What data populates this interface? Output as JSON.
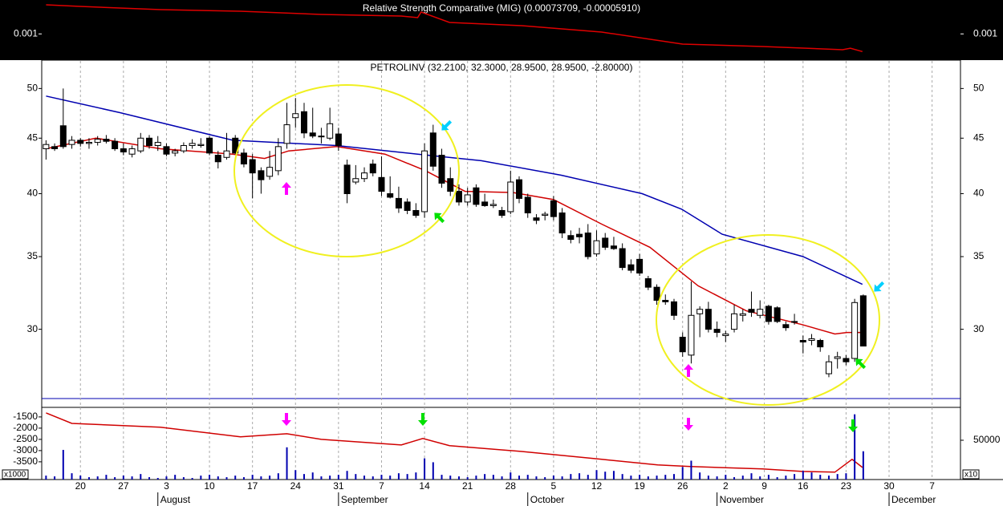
{
  "chart_data": [
    {
      "type": "line",
      "title": "Relative Strength Comparative (MIG) (0.00073709, -0.00005910)",
      "color": "#e00000",
      "x": [
        0,
        4,
        13.3,
        22.6,
        32,
        41.3,
        43.2,
        43.6,
        46.9,
        55.3,
        64.6,
        74,
        83.3,
        92.6,
        93.5,
        94.9
      ],
      "values": [
        0.001432,
        0.001409,
        0.001361,
        0.001337,
        0.001289,
        0.001265,
        0.001242,
        0.001325,
        0.00117,
        0.001122,
        0.001027,
        0.000848,
        0.000813,
        0.000765,
        0.000788,
        0.000737
      ],
      "ylim": [
        0.00061,
        0.00148
      ],
      "yticks": [
        0.001
      ]
    },
    {
      "type": "candlestick",
      "title": "PETROLINV (32.2100, 32.3000, 28.9500, 28.9500, -2.80000)",
      "log_scale": true,
      "ylim": [
        25.9,
        53.1
      ],
      "yticks": [
        30,
        35,
        40,
        45,
        50
      ],
      "open": [
        44.0,
        44.2,
        46.2,
        44.4,
        44.8,
        44.5,
        44.6,
        44.9,
        44.7,
        44.0,
        43.5,
        43.8,
        45.0,
        44.3,
        44.2,
        43.6,
        43.8,
        44.3,
        44.3,
        45.0,
        43.4,
        43.2,
        45.0,
        43.6,
        43.0,
        42.0,
        41.5,
        42.0,
        44.5,
        47.0,
        47.6,
        45.5,
        45.2,
        45.0,
        45.4,
        42.5,
        41.0,
        41.3,
        42.6,
        41.4,
        40.0,
        39.6,
        39.3,
        38.6,
        38.5,
        45.5,
        43.4,
        41.3,
        40.2,
        39.3,
        40.5,
        39.3,
        39.0,
        38.6,
        38.5,
        41.2,
        39.7,
        38.0,
        38.2,
        39.4,
        38.4,
        36.6,
        36.7,
        36.8,
        35.2,
        36.4,
        35.8,
        35.6,
        34.4,
        34.8,
        33.4,
        32.8,
        31.9,
        31.8,
        29.5,
        28.4,
        31.0,
        31.3,
        30.0,
        29.6,
        30.0,
        30.9,
        31.3,
        30.9,
        31.5,
        31.4,
        30.3,
        30.5,
        29.3,
        29.3,
        29.3,
        27.3,
        28.2,
        28.2,
        28.2,
        32.21
      ],
      "high": [
        44.8,
        44.5,
        50.0,
        45.2,
        45.0,
        45.0,
        45.2,
        45.3,
        45.0,
        44.5,
        44.3,
        45.5,
        45.3,
        45.2,
        44.5,
        44.0,
        44.6,
        44.9,
        45.0,
        45.2,
        43.8,
        45.5,
        45.3,
        44.0,
        43.5,
        42.3,
        43.8,
        45.0,
        48.5,
        49.0,
        48.5,
        48.0,
        46.0,
        48.0,
        46.0,
        43.0,
        42.5,
        42.3,
        43.0,
        43.3,
        41.5,
        40.6,
        39.6,
        39.2,
        44.5,
        46.3,
        44.0,
        42.3,
        40.8,
        40.5,
        40.8,
        40.0,
        39.5,
        38.9,
        42.0,
        41.5,
        40.0,
        38.3,
        38.5,
        39.8,
        38.8,
        37.0,
        37.2,
        37.5,
        37.0,
        36.8,
        36.5,
        36.0,
        34.8,
        35.2,
        33.6,
        33.0,
        32.3,
        32.0,
        29.8,
        33.2,
        31.5,
        31.8,
        30.5,
        29.9,
        31.6,
        31.3,
        32.5,
        31.9,
        31.6,
        31.5,
        30.5,
        31.0,
        29.6,
        29.7,
        29.4,
        28.4,
        28.6,
        28.4,
        32.0,
        32.3
      ],
      "low": [
        43.0,
        43.8,
        44.0,
        44.0,
        44.2,
        44.0,
        44.3,
        44.5,
        43.8,
        43.4,
        43.2,
        43.6,
        44.0,
        43.8,
        43.3,
        43.3,
        43.6,
        44.0,
        44.1,
        43.4,
        42.2,
        43.0,
        43.5,
        42.3,
        39.6,
        40.0,
        41.2,
        41.6,
        44.0,
        46.0,
        45.0,
        45.0,
        44.5,
        44.8,
        43.8,
        39.2,
        40.8,
        41.0,
        41.5,
        39.8,
        39.6,
        38.4,
        38.3,
        38.0,
        38.0,
        42.0,
        40.5,
        39.8,
        39.0,
        39.0,
        38.9,
        38.9,
        38.8,
        38.0,
        38.3,
        39.2,
        38.0,
        37.5,
        37.8,
        37.8,
        36.4,
        36.0,
        36.0,
        34.8,
        35.0,
        35.5,
        35.5,
        34.0,
        33.8,
        33.6,
        32.6,
        31.6,
        31.6,
        30.6,
        28.3,
        27.9,
        29.5,
        29.8,
        29.5,
        29.2,
        29.8,
        30.5,
        30.8,
        30.7,
        30.3,
        30.4,
        29.9,
        30.3,
        28.5,
        29.0,
        28.6,
        27.1,
        27.6,
        27.8,
        28.0,
        28.95
      ],
      "close": [
        44.4,
        44.0,
        44.2,
        44.8,
        44.5,
        44.6,
        44.9,
        44.7,
        44.0,
        43.7,
        44.0,
        45.0,
        44.3,
        44.6,
        43.5,
        43.8,
        44.3,
        44.5,
        44.4,
        43.6,
        42.8,
        43.8,
        43.6,
        42.6,
        41.8,
        41.2,
        42.3,
        44.2,
        46.3,
        47.4,
        45.5,
        45.2,
        45.2,
        46.4,
        44.3,
        40.0,
        41.3,
        41.8,
        41.8,
        40.2,
        39.7,
        38.8,
        38.6,
        38.2,
        43.8,
        42.4,
        40.9,
        40.2,
        39.3,
        39.9,
        39.1,
        39.0,
        39.1,
        38.2,
        41.0,
        39.6,
        38.4,
        37.8,
        38.3,
        38.1,
        36.8,
        36.3,
        36.5,
        35.0,
        36.2,
        35.7,
        35.6,
        34.2,
        34.0,
        33.8,
        32.8,
        31.9,
        31.8,
        30.9,
        28.6,
        30.9,
        31.3,
        30.0,
        29.8,
        29.7,
        31.0,
        31.0,
        31.1,
        31.3,
        30.5,
        30.5,
        30.1,
        30.5,
        29.2,
        29.4,
        28.9,
        28.0,
        28.3,
        28.0,
        31.75,
        28.95
      ],
      "series": [
        {
          "color": "#d00000",
          "x": [
            0,
            5.8,
            13.3,
            21.7,
            25.4,
            28.2,
            33.8,
            39.4,
            44.1,
            48.7,
            54.3,
            59,
            64.6,
            70.2,
            75.8,
            81.4,
            87.9,
            91.7,
            93.1,
            94.9
          ],
          "values": [
            44.0,
            45.0,
            44.0,
            43.5,
            43.1,
            43.8,
            44.2,
            43.5,
            42.0,
            40.2,
            40.1,
            39.5,
            37.5,
            35.7,
            32.9,
            31.2,
            30.3,
            29.7,
            29.8,
            29.8
          ]
        },
        {
          "color": "#0000b0",
          "x": [
            0,
            8.6,
            21.7,
            33.8,
            43.2,
            50.6,
            59.9,
            69.3,
            73.9,
            78.6,
            88,
            94.9
          ],
          "values": [
            49.2,
            47.5,
            44.8,
            44.3,
            43.5,
            42.9,
            41.6,
            40.0,
            38.7,
            36.7,
            35.0,
            33.0
          ]
        }
      ]
    },
    {
      "type": "line",
      "ylim": [
        -4290,
        -1110
      ],
      "yticks": [
        -1500,
        -2000,
        -2500,
        -3000,
        -3500
      ],
      "y_unit_label": "x1000",
      "y2lim": [
        0,
        90800
      ],
      "y2ticks": [
        50000
      ],
      "y2_unit_label": "x10",
      "xlim": [
        -0.5,
        106.3
      ],
      "xticks": [
        {
          "value": 4,
          "label": "20"
        },
        {
          "value": 9,
          "label": "27"
        },
        {
          "value": 14,
          "label": "3"
        },
        {
          "value": 19,
          "label": "10"
        },
        {
          "value": 24,
          "label": "17"
        },
        {
          "value": 29,
          "label": "24"
        },
        {
          "value": 34,
          "label": "31"
        },
        {
          "value": 39,
          "label": "7"
        },
        {
          "value": 44,
          "label": "14"
        },
        {
          "value": 49,
          "label": "21"
        },
        {
          "value": 54,
          "label": "28"
        },
        {
          "value": 59,
          "label": "5"
        },
        {
          "value": 64,
          "label": "12"
        },
        {
          "value": 69,
          "label": "19"
        },
        {
          "value": 74,
          "label": "26"
        },
        {
          "value": 79,
          "label": "2"
        },
        {
          "value": 83.5,
          "label": "9"
        },
        {
          "value": 88,
          "label": "16"
        },
        {
          "value": 93,
          "label": "23"
        },
        {
          "value": 98,
          "label": "30"
        },
        {
          "value": 103,
          "label": "7"
        }
      ],
      "month_labels": [
        {
          "value": 13,
          "label": "August"
        },
        {
          "value": 34,
          "label": "September"
        },
        {
          "value": 56,
          "label": "October"
        },
        {
          "value": 78,
          "label": "November"
        },
        {
          "value": 98,
          "label": "December"
        }
      ],
      "series": [
        {
          "color": "#d00000",
          "x": [
            0,
            3,
            13.3,
            22.6,
            28,
            32,
            41.3,
            43.8,
            46.9,
            55.3,
            64.6,
            71.1,
            74.9,
            83.3,
            87.9,
            91.7,
            93.7,
            94.9
          ],
          "values": [
            -1320,
            -1790,
            -1960,
            -2390,
            -2250,
            -2500,
            -2750,
            -2460,
            -2780,
            -3040,
            -3390,
            -3640,
            -3710,
            -3820,
            -3930,
            -3960,
            -3390,
            -3750
          ]
        },
        {
          "type": "bar",
          "axis": "y2",
          "color": "#0000b0",
          "values": [
            5000,
            4000,
            37700,
            8000,
            5000,
            3000,
            4000,
            6000,
            3000,
            5000,
            4000,
            7000,
            3000,
            2000,
            4000,
            6000,
            3000,
            2000,
            5000,
            6000,
            4000,
            3000,
            5000,
            3000,
            6000,
            4000,
            5000,
            8000,
            41000,
            12000,
            7000,
            9000,
            4000,
            5000,
            6000,
            11000,
            7000,
            5000,
            4000,
            6000,
            5000,
            8000,
            7000,
            9000,
            27000,
            22000,
            6000,
            5000,
            4000,
            3000,
            5000,
            7000,
            6000,
            4000,
            9000,
            5000,
            6000,
            4000,
            3000,
            5000,
            4000,
            7000,
            8000,
            6000,
            12000,
            10000,
            11000,
            7000,
            5000,
            6000,
            4000,
            5000,
            6000,
            7000,
            16000,
            24000,
            9000,
            5000,
            4000,
            6000,
            3000,
            5000,
            8000,
            4000,
            6000,
            3000,
            5000,
            7000,
            11000,
            9000,
            6000,
            5000,
            7000,
            8000,
            83000,
            36000
          ]
        }
      ]
    }
  ]
}
